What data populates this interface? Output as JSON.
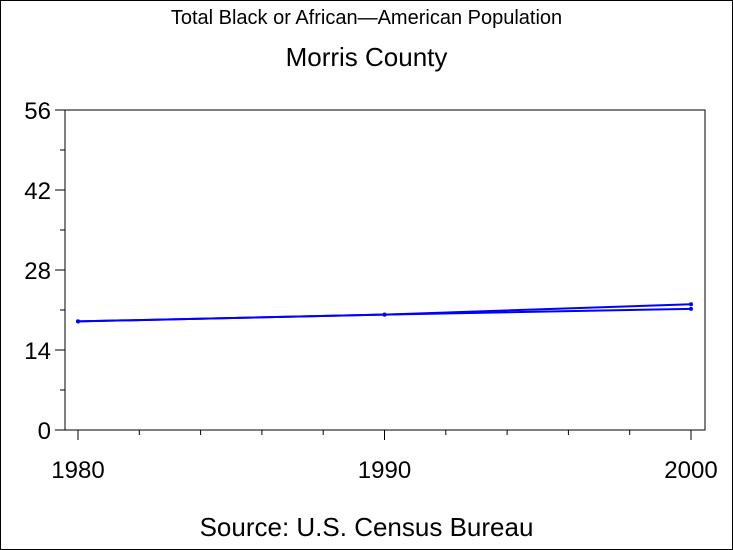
{
  "chart_data": {
    "type": "line",
    "title": "Total Black or African—American Population",
    "subtitle": "Morris County",
    "source": "Source: U.S. Census Bureau",
    "xlabel": "",
    "ylabel": "",
    "xlim": [
      1980,
      2000
    ],
    "ylim": [
      0,
      56
    ],
    "x_ticks": [
      "1980",
      "1990",
      "2000"
    ],
    "y_ticks": [
      "0",
      "14",
      "28",
      "42",
      "56"
    ],
    "grid": false,
    "series": [
      {
        "x": [
          1980,
          1990,
          2000
        ],
        "values": [
          19.0,
          20.2,
          22.0
        ]
      },
      {
        "x": [
          1980,
          1990,
          2000
        ],
        "values": [
          19.0,
          20.2,
          21.2
        ]
      }
    ],
    "line_color": "#0000ff"
  }
}
